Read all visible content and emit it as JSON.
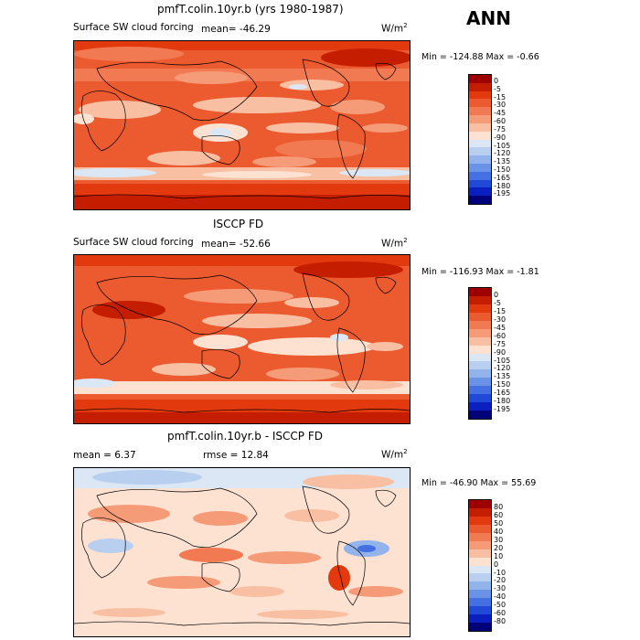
{
  "season": "ANN",
  "panels": [
    {
      "title": "pmfT.colin.10yr.b (yrs 1980-1987)",
      "left_label": "Surface SW cloud forcing",
      "mean_label": "mean=  -46.29",
      "units": "W/m",
      "units_exp": "2",
      "minmax": "Min = -124.88  Max =   -0.66",
      "levels": [
        "0",
        "-5",
        "-15",
        "-30",
        "-45",
        "-60",
        "-75",
        "-90",
        "-105",
        "-120",
        "-135",
        "-150",
        "-165",
        "-180",
        "-195"
      ],
      "colors": [
        "#9e0000",
        "#c51d00",
        "#e23a0e",
        "#ec5a30",
        "#f27a52",
        "#f69b78",
        "#f9bfa3",
        "#fde2d2",
        "#dce7f5",
        "#b9cff0",
        "#93b3ec",
        "#6a93e8",
        "#4470e3",
        "#2049d8",
        "#0a1fbf",
        "#00007a"
      ]
    },
    {
      "title": "ISCCP FD",
      "left_label": "Surface SW cloud forcing",
      "mean_label": "mean=  -52.66",
      "units": "W/m",
      "units_exp": "2",
      "minmax": "Min = -116.93  Max =   -1.81",
      "levels": [
        "0",
        "-5",
        "-15",
        "-30",
        "-45",
        "-60",
        "-75",
        "-90",
        "-105",
        "-120",
        "-135",
        "-150",
        "-165",
        "-180",
        "-195"
      ],
      "colors": [
        "#9e0000",
        "#c51d00",
        "#e23a0e",
        "#ec5a30",
        "#f27a52",
        "#f69b78",
        "#f9bfa3",
        "#fde2d2",
        "#dce7f5",
        "#b9cff0",
        "#93b3ec",
        "#6a93e8",
        "#4470e3",
        "#2049d8",
        "#0a1fbf",
        "#00007a"
      ]
    },
    {
      "title": "pmfT.colin.10yr.b - ISCCP FD",
      "left_label": "mean =    6.37",
      "mean_label": "rmse =   12.84",
      "units": "W/m",
      "units_exp": "2",
      "minmax": "Min = -46.90  Max =  55.69",
      "levels": [
        "80",
        "60",
        "50",
        "40",
        "30",
        "20",
        "10",
        "0",
        "-10",
        "-20",
        "-30",
        "-40",
        "-50",
        "-60",
        "-80"
      ],
      "colors": [
        "#9e0000",
        "#c51d00",
        "#e23a0e",
        "#ec5a30",
        "#f27a52",
        "#f69b78",
        "#f9bfa3",
        "#fde2d2",
        "#dce7f5",
        "#b9cff0",
        "#93b3ec",
        "#6a93e8",
        "#4470e3",
        "#2049d8",
        "#0a1fbf",
        "#00007a"
      ]
    }
  ]
}
